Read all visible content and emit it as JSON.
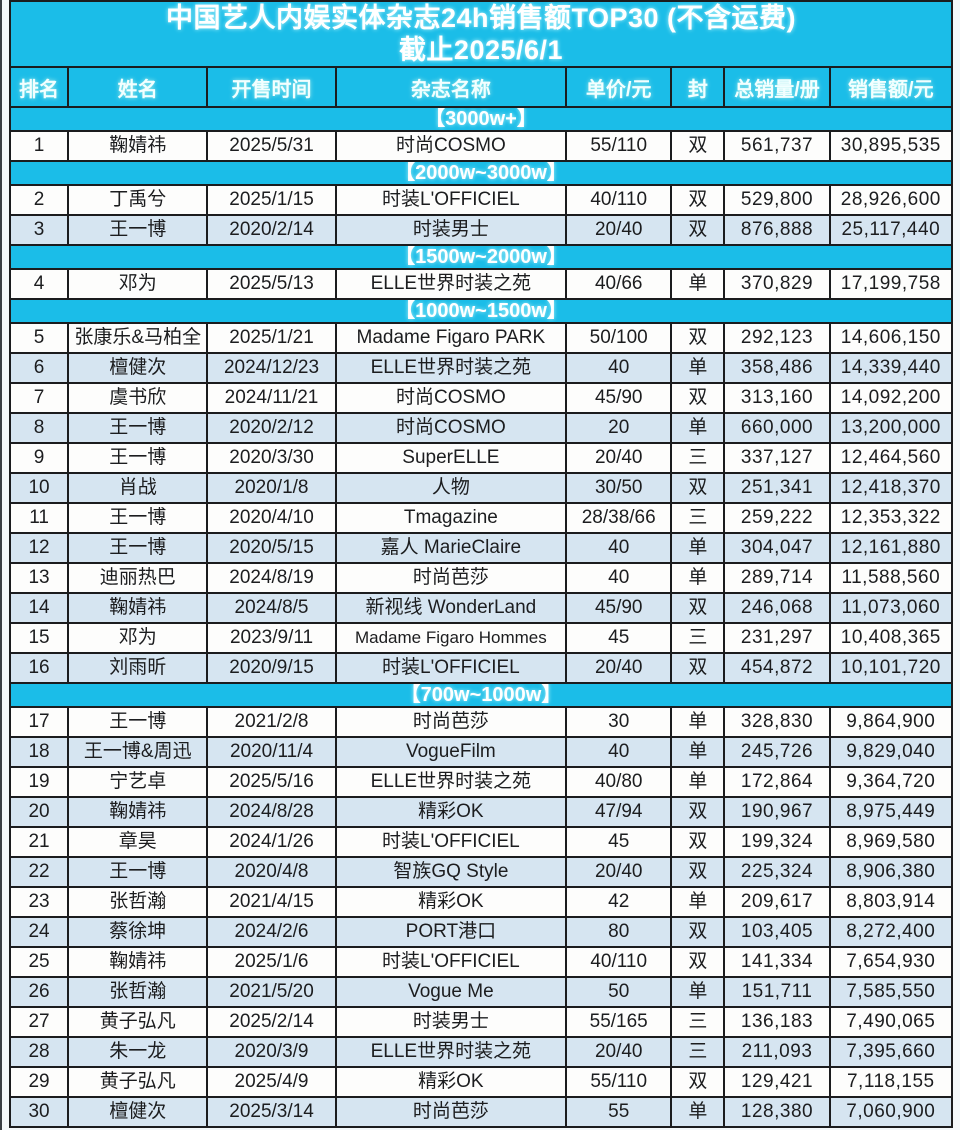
{
  "page": {
    "title_line1": "中国艺人内娱实体杂志24h销售额TOP30 (不含运费)",
    "title_line2": "截止2025/6/1"
  },
  "colors": {
    "banner_cyan": "#1bbde8",
    "row_alt_blue": "#d6e5f1",
    "row_white": "#fdfdfc",
    "border_black": "#1b1c1e",
    "banner_text": "#ffffff",
    "data_text": "#1c1d1f"
  },
  "table": {
    "columns": [
      "排名",
      "姓名",
      "开售时间",
      "杂志名称",
      "单价/元",
      "封",
      "总销量/册",
      "销售额/元"
    ],
    "sections": [
      {
        "label": "【3000w+】",
        "rows": [
          {
            "rank": "1",
            "name": "鞠婧祎",
            "date": "2025/5/31",
            "magazine": "时尚COSMO",
            "price": "55/110",
            "cover": "双",
            "sales": "561,737",
            "revenue": "30,895,535"
          }
        ]
      },
      {
        "label": "【2000w~3000w】",
        "rows": [
          {
            "rank": "2",
            "name": "丁禹兮",
            "date": "2025/1/15",
            "magazine": "时装L'OFFICIEL",
            "price": "40/110",
            "cover": "双",
            "sales": "529,800",
            "revenue": "28,926,600"
          },
          {
            "rank": "3",
            "name": "王一博",
            "date": "2020/2/14",
            "magazine": "时装男士",
            "price": "20/40",
            "cover": "双",
            "sales": "876,888",
            "revenue": "25,117,440"
          }
        ]
      },
      {
        "label": "【1500w~2000w】",
        "rows": [
          {
            "rank": "4",
            "name": "邓为",
            "date": "2025/5/13",
            "magazine": "ELLE世界时装之苑",
            "price": "40/66",
            "cover": "单",
            "sales": "370,829",
            "revenue": "17,199,758"
          }
        ]
      },
      {
        "label": "【1000w~1500w】",
        "rows": [
          {
            "rank": "5",
            "name": "张康乐&马柏全",
            "date": "2025/1/21",
            "magazine": "Madame Figaro PARK",
            "price": "50/100",
            "cover": "双",
            "sales": "292,123",
            "revenue": "14,606,150"
          },
          {
            "rank": "6",
            "name": "檀健次",
            "date": "2024/12/23",
            "magazine": "ELLE世界时装之苑",
            "price": "40",
            "cover": "单",
            "sales": "358,486",
            "revenue": "14,339,440"
          },
          {
            "rank": "7",
            "name": "虞书欣",
            "date": "2024/11/21",
            "magazine": "时尚COSMO",
            "price": "45/90",
            "cover": "双",
            "sales": "313,160",
            "revenue": "14,092,200"
          },
          {
            "rank": "8",
            "name": "王一博",
            "date": "2020/2/12",
            "magazine": "时尚COSMO",
            "price": "20",
            "cover": "单",
            "sales": "660,000",
            "revenue": "13,200,000"
          },
          {
            "rank": "9",
            "name": "王一博",
            "date": "2020/3/30",
            "magazine": "SuperELLE",
            "price": "20/40",
            "cover": "三",
            "sales": "337,127",
            "revenue": "12,464,560"
          },
          {
            "rank": "10",
            "name": "肖战",
            "date": "2020/1/8",
            "magazine": "人物",
            "price": "30/50",
            "cover": "双",
            "sales": "251,341",
            "revenue": "12,418,370"
          },
          {
            "rank": "11",
            "name": "王一博",
            "date": "2020/4/10",
            "magazine": "Tmagazine",
            "price": "28/38/66",
            "cover": "三",
            "sales": "259,222",
            "revenue": "12,353,322"
          },
          {
            "rank": "12",
            "name": "王一博",
            "date": "2020/5/15",
            "magazine": "嘉人 MarieClaire",
            "price": "40",
            "cover": "单",
            "sales": "304,047",
            "revenue": "12,161,880"
          },
          {
            "rank": "13",
            "name": "迪丽热巴",
            "date": "2024/8/19",
            "magazine": "时尚芭莎",
            "price": "40",
            "cover": "单",
            "sales": "289,714",
            "revenue": "11,588,560"
          },
          {
            "rank": "14",
            "name": "鞠婧祎",
            "date": "2024/8/5",
            "magazine": "新视线 WonderLand",
            "price": "45/90",
            "cover": "双",
            "sales": "246,068",
            "revenue": "11,073,060"
          },
          {
            "rank": "15",
            "name": "邓为",
            "date": "2023/9/11",
            "magazine": "Madame Figaro Hommes",
            "price": "45",
            "cover": "三",
            "sales": "231,297",
            "revenue": "10,408,365"
          },
          {
            "rank": "16",
            "name": "刘雨昕",
            "date": "2020/9/15",
            "magazine": "时装L'OFFICIEL",
            "price": "20/40",
            "cover": "双",
            "sales": "454,872",
            "revenue": "10,101,720"
          }
        ]
      },
      {
        "label": "【700w~1000w】",
        "rows": [
          {
            "rank": "17",
            "name": "王一博",
            "date": "2021/2/8",
            "magazine": "时尚芭莎",
            "price": "30",
            "cover": "单",
            "sales": "328,830",
            "revenue": "9,864,900"
          },
          {
            "rank": "18",
            "name": "王一博&周迅",
            "date": "2020/11/4",
            "magazine": "VogueFilm",
            "price": "40",
            "cover": "单",
            "sales": "245,726",
            "revenue": "9,829,040"
          },
          {
            "rank": "19",
            "name": "宁艺卓",
            "date": "2025/5/16",
            "magazine": "ELLE世界时装之苑",
            "price": "40/80",
            "cover": "单",
            "sales": "172,864",
            "revenue": "9,364,720"
          },
          {
            "rank": "20",
            "name": "鞠婧祎",
            "date": "2024/8/28",
            "magazine": "精彩OK",
            "price": "47/94",
            "cover": "双",
            "sales": "190,967",
            "revenue": "8,975,449"
          },
          {
            "rank": "21",
            "name": "章昊",
            "date": "2024/1/26",
            "magazine": "时装L'OFFICIEL",
            "price": "45",
            "cover": "双",
            "sales": "199,324",
            "revenue": "8,969,580"
          },
          {
            "rank": "22",
            "name": "王一博",
            "date": "2020/4/8",
            "magazine": "智族GQ Style",
            "price": "20/40",
            "cover": "双",
            "sales": "225,324",
            "revenue": "8,906,380"
          },
          {
            "rank": "23",
            "name": "张哲瀚",
            "date": "2021/4/15",
            "magazine": "精彩OK",
            "price": "42",
            "cover": "单",
            "sales": "209,617",
            "revenue": "8,803,914"
          },
          {
            "rank": "24",
            "name": "蔡徐坤",
            "date": "2024/2/6",
            "magazine": "PORT港口",
            "price": "80",
            "cover": "双",
            "sales": "103,405",
            "revenue": "8,272,400"
          },
          {
            "rank": "25",
            "name": "鞠婧祎",
            "date": "2025/1/6",
            "magazine": "时装L'OFFICIEL",
            "price": "40/110",
            "cover": "双",
            "sales": "141,334",
            "revenue": "7,654,930"
          },
          {
            "rank": "26",
            "name": "张哲瀚",
            "date": "2021/5/20",
            "magazine": "Vogue Me",
            "price": "50",
            "cover": "单",
            "sales": "151,711",
            "revenue": "7,585,550"
          },
          {
            "rank": "27",
            "name": "黄子弘凡",
            "date": "2025/2/14",
            "magazine": "时装男士",
            "price": "55/165",
            "cover": "三",
            "sales": "136,183",
            "revenue": "7,490,065"
          },
          {
            "rank": "28",
            "name": "朱一龙",
            "date": "2020/3/9",
            "magazine": "ELLE世界时装之苑",
            "price": "20/40",
            "cover": "三",
            "sales": "211,093",
            "revenue": "7,395,660"
          },
          {
            "rank": "29",
            "name": "黄子弘凡",
            "date": "2025/4/9",
            "magazine": "精彩OK",
            "price": "55/110",
            "cover": "双",
            "sales": "129,421",
            "revenue": "7,118,155"
          },
          {
            "rank": "30",
            "name": "檀健次",
            "date": "2025/3/14",
            "magazine": "时尚芭莎",
            "price": "55",
            "cover": "单",
            "sales": "128,380",
            "revenue": "7,060,900"
          }
        ]
      }
    ]
  }
}
